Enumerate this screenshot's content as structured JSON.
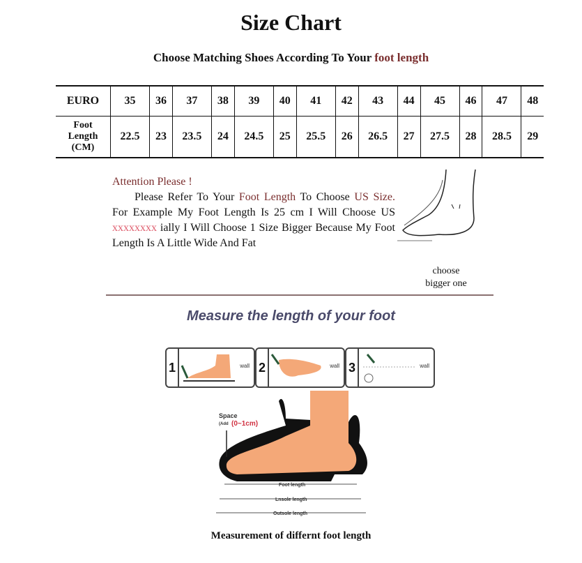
{
  "title": "Size Chart",
  "subtitle": {
    "prefix": "Choose Matching Shoes According To Your ",
    "highlight": "foot length"
  },
  "table": {
    "row_headers": [
      "EURO",
      "Foot",
      "Length",
      "(CM)"
    ],
    "euro": [
      "35",
      "36",
      "37",
      "38",
      "39",
      "40",
      "41",
      "42",
      "43",
      "44",
      "45",
      "46",
      "47",
      "48"
    ],
    "foot_length_cm": [
      "22.5",
      "23",
      "23.5",
      "24",
      "24.5",
      "25",
      "25.5",
      "26",
      "26.5",
      "27",
      "27.5",
      "28",
      "28.5",
      "29"
    ]
  },
  "attention": {
    "heading": "Attention Please !",
    "p1": "Please Refer To Your ",
    "p1_hl": "Foot Length",
    "p2": " To Choose ",
    "p2_hl": "US Size.",
    "p3": " For Example My Foot Length Is 25 cm I Will Choose US ",
    "p3_hl": "xxxxxxxx",
    "p4": " ially I Will Choose 1 Size Bigger Because My Foot Length Is A Little Wide And Fat"
  },
  "choose_note": [
    "choose",
    "bigger one"
  ],
  "measure_heading": "Measure the length of your foot",
  "steps": [
    {
      "num": "1",
      "wall": "wall"
    },
    {
      "num": "2",
      "wall": "wall"
    },
    {
      "num": "3",
      "wall": "wall"
    }
  ],
  "diagram": {
    "space_label": "Space",
    "space_add": "(Add",
    "space_range": "(0~1cm)",
    "foot_length": "Foot length",
    "insole_length": "Lnsole length",
    "outsole_length": "Outsole length"
  },
  "caption": "Measurement of differnt foot length",
  "colors": {
    "accent": "#7a2e2e",
    "skin": "#f4a878",
    "heading_blue": "#4a4a6a"
  }
}
